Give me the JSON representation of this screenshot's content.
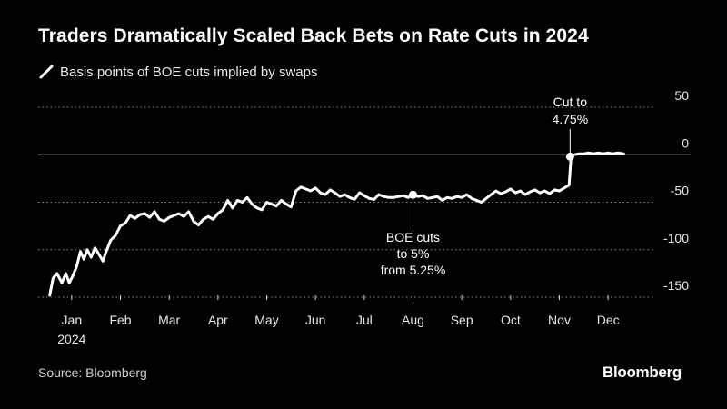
{
  "title": "Traders Dramatically Scaled Back Bets on Rate Cuts in 2024",
  "legend_label": "Basis points of BOE cuts implied by swaps",
  "source": "Source: Bloomberg",
  "brand": "Bloomberg",
  "colors": {
    "background": "#000000",
    "line": "#ffffff",
    "grid": "#888888",
    "text": "#e8e8e8"
  },
  "chart_data": {
    "type": "line",
    "title": "Traders Dramatically Scaled Back Bets on Rate Cuts in 2024",
    "xlabel": "",
    "ylabel": "",
    "ylim": [
      -160,
      50
    ],
    "yticks": [
      50,
      0,
      -50,
      -100,
      -150
    ],
    "ytick_labels": [
      "50",
      "0",
      "-50",
      "-100",
      "-150"
    ],
    "xlim": [
      0,
      12
    ],
    "xticks": [
      0.5,
      1.5,
      2.5,
      3.5,
      4.5,
      5.5,
      6.5,
      7.5,
      8.5,
      9.5,
      10.5,
      11.5
    ],
    "xtick_labels": [
      "Jan",
      "Feb",
      "Mar",
      "Apr",
      "May",
      "Jun",
      "Jul",
      "Aug",
      "Sep",
      "Oct",
      "Nov",
      "Dec"
    ],
    "xtick_sublabel": "2024",
    "grid": "horizontal dotted",
    "series": [
      {
        "x": [
          0.05,
          0.12,
          0.2,
          0.3,
          0.38,
          0.45,
          0.52,
          0.6,
          0.68,
          0.75,
          0.82,
          0.9,
          0.98,
          1.06,
          1.14,
          1.2,
          1.3,
          1.4,
          1.5,
          1.6,
          1.7,
          1.8,
          1.9,
          2.0,
          2.1,
          2.2,
          2.3,
          2.4,
          2.5,
          2.6,
          2.7,
          2.8,
          2.9,
          3.0,
          3.1,
          3.2,
          3.3,
          3.4,
          3.5,
          3.6,
          3.7,
          3.8,
          3.9,
          4.0,
          4.1,
          4.2,
          4.3,
          4.4,
          4.5,
          4.6,
          4.7,
          4.8,
          4.9,
          5.0,
          5.1,
          5.2,
          5.3,
          5.4,
          5.5,
          5.6,
          5.7,
          5.8,
          5.9,
          6.0,
          6.1,
          6.2,
          6.3,
          6.4,
          6.5,
          6.6,
          6.7,
          6.8,
          6.9,
          7.0,
          7.1,
          7.2,
          7.3,
          7.4,
          7.5,
          7.6,
          7.7,
          7.8,
          7.9,
          8.0,
          8.1,
          8.2,
          8.3,
          8.4,
          8.5,
          8.6,
          8.7,
          8.8,
          8.9,
          9.0,
          9.1,
          9.2,
          9.3,
          9.4,
          9.5,
          9.6,
          9.7,
          9.8,
          9.9,
          10.0,
          10.1,
          10.2,
          10.3,
          10.4,
          10.5,
          10.6,
          10.7,
          10.74,
          10.8,
          10.9,
          11.0,
          11.1,
          11.2,
          11.3,
          11.4,
          11.5,
          11.6,
          11.7,
          11.82
        ],
        "y": [
          -148,
          -130,
          -125,
          -135,
          -125,
          -135,
          -128,
          -118,
          -102,
          -110,
          -100,
          -108,
          -98,
          -105,
          -112,
          -103,
          -90,
          -85,
          -75,
          -72,
          -64,
          -67,
          -63,
          -62,
          -66,
          -60,
          -68,
          -70,
          -66,
          -64,
          -62,
          -65,
          -60,
          -70,
          -74,
          -68,
          -65,
          -68,
          -62,
          -58,
          -48,
          -56,
          -48,
          -50,
          -45,
          -52,
          -56,
          -58,
          -50,
          -52,
          -54,
          -48,
          -52,
          -55,
          -38,
          -34,
          -36,
          -38,
          -35,
          -40,
          -42,
          -37,
          -40,
          -44,
          -42,
          -45,
          -47,
          -40,
          -43,
          -46,
          -47,
          -42,
          -44,
          -45,
          -45,
          -44,
          -43,
          -45,
          -42,
          -44,
          -43,
          -46,
          -45,
          -44,
          -48,
          -45,
          -46,
          -44,
          -45,
          -42,
          -46,
          -48,
          -50,
          -46,
          -42,
          -38,
          -41,
          -39,
          -36,
          -40,
          -38,
          -42,
          -39,
          -37,
          -40,
          -38,
          -41,
          -37,
          -38,
          -35,
          -32,
          -2,
          0,
          1,
          1,
          2,
          1,
          2,
          1,
          2,
          1,
          2,
          1
        ]
      }
    ],
    "annotations": [
      {
        "text_lines": [
          "BOE cuts",
          "to 5%",
          "from 5.25%"
        ],
        "x": 7.5,
        "y": -45
      },
      {
        "text_lines": [
          "Cut to",
          "4.75%"
        ],
        "x": 10.72,
        "y": -2
      }
    ]
  }
}
